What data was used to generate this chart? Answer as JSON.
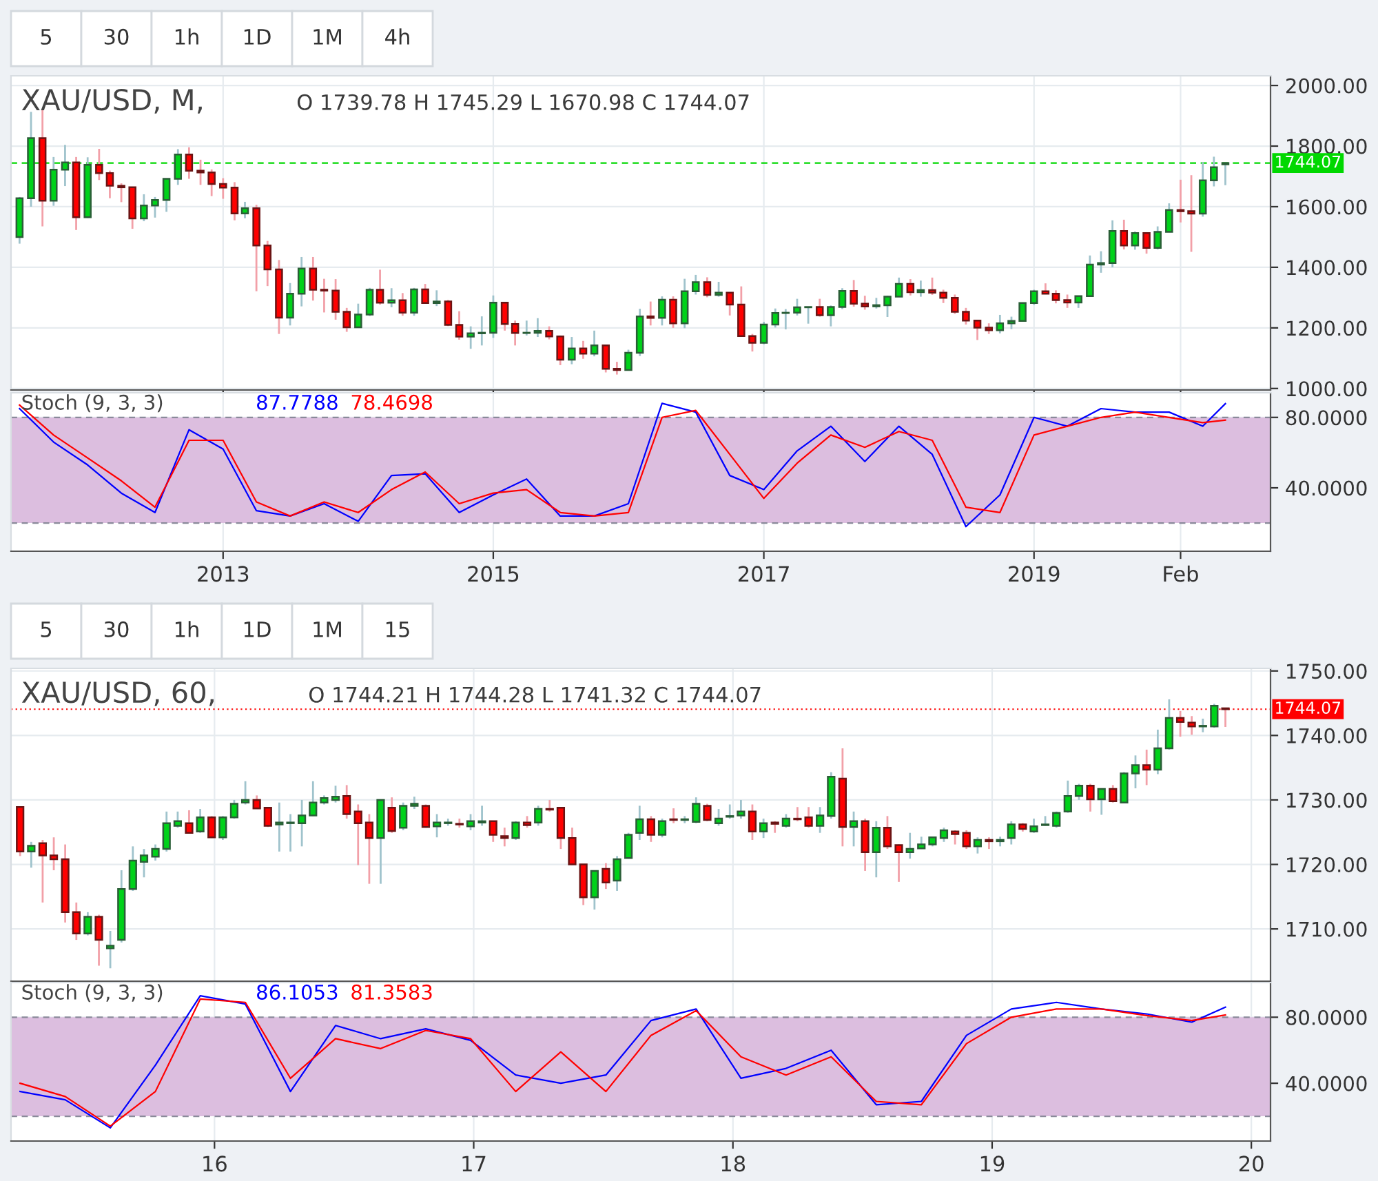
{
  "chart_data": [
    {
      "type": "candlestick",
      "title": "XAU/USD, M,",
      "subtitle": "O 1739.78 H 1745.29 L 1670.98 C 1744.07",
      "annotations": [
        "5",
        "30",
        "1h",
        "1D",
        "1M",
        "4h"
      ],
      "x": [
        "2011-07",
        "2011-08",
        "2011-09",
        "2011-10",
        "2011-11",
        "2011-12",
        "2012-01",
        "2012-02",
        "2012-03",
        "2012-04",
        "2012-05",
        "2012-06",
        "2012-07",
        "2012-08",
        "2012-09",
        "2012-10",
        "2012-11",
        "2012-12",
        "2013-01",
        "2013-02",
        "2013-03",
        "2013-04",
        "2013-05",
        "2013-06",
        "2013-07",
        "2013-08",
        "2013-09",
        "2013-10",
        "2013-11",
        "2013-12",
        "2014-01",
        "2014-02",
        "2014-03",
        "2014-04",
        "2014-05",
        "2014-06",
        "2014-07",
        "2014-08",
        "2014-09",
        "2014-10",
        "2014-11",
        "2014-12",
        "2015-01",
        "2015-02",
        "2015-03",
        "2015-04",
        "2015-05",
        "2015-06",
        "2015-07",
        "2015-08",
        "2015-09",
        "2015-10",
        "2015-11",
        "2015-12",
        "2016-01",
        "2016-02",
        "2016-03",
        "2016-04",
        "2016-05",
        "2016-06",
        "2016-07",
        "2016-08",
        "2016-09",
        "2016-10",
        "2016-11",
        "2016-12",
        "2017-01",
        "2017-02",
        "2017-03",
        "2017-04",
        "2017-05",
        "2017-06",
        "2017-07",
        "2017-08",
        "2017-09",
        "2017-10",
        "2017-11",
        "2017-12",
        "2018-01",
        "2018-02",
        "2018-03",
        "2018-04",
        "2018-05",
        "2018-06",
        "2018-07",
        "2018-08",
        "2018-09",
        "2018-10",
        "2018-11",
        "2018-12",
        "2019-01",
        "2019-02",
        "2019-03",
        "2019-04",
        "2019-05",
        "2019-06",
        "2019-07",
        "2019-08",
        "2019-09",
        "2019-10",
        "2019-11",
        "2019-12",
        "2020-01",
        "2020-02",
        "2020-03",
        "2020-04",
        "2020-05",
        "2020-06"
      ],
      "ohlc": [
        [
          1500,
          1632,
          1478,
          1628
        ],
        [
          1628,
          1913,
          1600,
          1826
        ],
        [
          1826,
          1921,
          1535,
          1620
        ],
        [
          1620,
          1764,
          1603,
          1722
        ],
        [
          1722,
          1804,
          1668,
          1746
        ],
        [
          1746,
          1764,
          1523,
          1565
        ],
        [
          1565,
          1763,
          1563,
          1738
        ],
        [
          1738,
          1791,
          1688,
          1711
        ],
        [
          1711,
          1719,
          1628,
          1669
        ],
        [
          1669,
          1677,
          1615,
          1664
        ],
        [
          1664,
          1666,
          1527,
          1561
        ],
        [
          1561,
          1641,
          1552,
          1604
        ],
        [
          1604,
          1632,
          1564,
          1622
        ],
        [
          1622,
          1693,
          1583,
          1692
        ],
        [
          1692,
          1790,
          1672,
          1772
        ],
        [
          1772,
          1796,
          1692,
          1719
        ],
        [
          1719,
          1755,
          1672,
          1713
        ],
        [
          1713,
          1723,
          1635,
          1675
        ],
        [
          1675,
          1694,
          1626,
          1663
        ],
        [
          1663,
          1681,
          1555,
          1578
        ],
        [
          1578,
          1616,
          1562,
          1595
        ],
        [
          1595,
          1606,
          1321,
          1472
        ],
        [
          1472,
          1487,
          1338,
          1393
        ],
        [
          1393,
          1424,
          1180,
          1234
        ],
        [
          1234,
          1348,
          1208,
          1313
        ],
        [
          1313,
          1434,
          1271,
          1396
        ],
        [
          1396,
          1434,
          1290,
          1326
        ],
        [
          1326,
          1362,
          1251,
          1323
        ],
        [
          1323,
          1361,
          1227,
          1253
        ],
        [
          1253,
          1266,
          1187,
          1202
        ],
        [
          1202,
          1280,
          1200,
          1244
        ],
        [
          1244,
          1332,
          1239,
          1326
        ],
        [
          1326,
          1392,
          1277,
          1283
        ],
        [
          1283,
          1331,
          1268,
          1291
        ],
        [
          1291,
          1315,
          1240,
          1250
        ],
        [
          1250,
          1332,
          1240,
          1327
        ],
        [
          1327,
          1345,
          1281,
          1282
        ],
        [
          1282,
          1324,
          1272,
          1287
        ],
        [
          1287,
          1292,
          1206,
          1210
        ],
        [
          1210,
          1255,
          1161,
          1171
        ],
        [
          1171,
          1205,
          1131,
          1182
        ],
        [
          1182,
          1238,
          1142,
          1184
        ],
        [
          1184,
          1307,
          1167,
          1283
        ],
        [
          1283,
          1284,
          1191,
          1213
        ],
        [
          1213,
          1224,
          1142,
          1183
        ],
        [
          1183,
          1224,
          1175,
          1184
        ],
        [
          1184,
          1232,
          1170,
          1190
        ],
        [
          1190,
          1205,
          1162,
          1172
        ],
        [
          1172,
          1175,
          1077,
          1095
        ],
        [
          1095,
          1170,
          1080,
          1132
        ],
        [
          1132,
          1157,
          1098,
          1115
        ],
        [
          1115,
          1191,
          1106,
          1142
        ],
        [
          1142,
          1143,
          1053,
          1065
        ],
        [
          1065,
          1088,
          1046,
          1061
        ],
        [
          1061,
          1128,
          1061,
          1118
        ],
        [
          1118,
          1263,
          1107,
          1238
        ],
        [
          1238,
          1287,
          1208,
          1233
        ],
        [
          1233,
          1304,
          1208,
          1293
        ],
        [
          1293,
          1304,
          1200,
          1215
        ],
        [
          1215,
          1362,
          1199,
          1321
        ],
        [
          1321,
          1375,
          1310,
          1351
        ],
        [
          1351,
          1367,
          1301,
          1309
        ],
        [
          1309,
          1352,
          1303,
          1316
        ],
        [
          1316,
          1318,
          1241,
          1277
        ],
        [
          1277,
          1337,
          1171,
          1173
        ],
        [
          1173,
          1180,
          1122,
          1151
        ],
        [
          1151,
          1220,
          1146,
          1211
        ],
        [
          1211,
          1264,
          1201,
          1249
        ],
        [
          1249,
          1262,
          1195,
          1250
        ],
        [
          1250,
          1296,
          1241,
          1268
        ],
        [
          1268,
          1270,
          1214,
          1269
        ],
        [
          1269,
          1296,
          1237,
          1242
        ],
        [
          1242,
          1274,
          1205,
          1269
        ],
        [
          1269,
          1331,
          1262,
          1322
        ],
        [
          1322,
          1358,
          1270,
          1280
        ],
        [
          1280,
          1306,
          1260,
          1271
        ],
        [
          1271,
          1299,
          1264,
          1275
        ],
        [
          1275,
          1306,
          1236,
          1303
        ],
        [
          1303,
          1366,
          1302,
          1345
        ],
        [
          1345,
          1361,
          1307,
          1318
        ],
        [
          1318,
          1356,
          1303,
          1325
        ],
        [
          1325,
          1366,
          1309,
          1316
        ],
        [
          1316,
          1326,
          1282,
          1299
        ],
        [
          1299,
          1310,
          1246,
          1253
        ],
        [
          1253,
          1266,
          1211,
          1224
        ],
        [
          1224,
          1227,
          1160,
          1201
        ],
        [
          1201,
          1215,
          1180,
          1192
        ],
        [
          1192,
          1243,
          1182,
          1215
        ],
        [
          1215,
          1237,
          1196,
          1223
        ],
        [
          1223,
          1284,
          1221,
          1282
        ],
        [
          1282,
          1326,
          1276,
          1321
        ],
        [
          1321,
          1347,
          1311,
          1313
        ],
        [
          1313,
          1324,
          1281,
          1292
        ],
        [
          1292,
          1310,
          1266,
          1284
        ],
        [
          1284,
          1306,
          1266,
          1305
        ],
        [
          1305,
          1439,
          1303,
          1409
        ],
        [
          1409,
          1453,
          1382,
          1414
        ],
        [
          1414,
          1555,
          1400,
          1520
        ],
        [
          1520,
          1557,
          1459,
          1472
        ],
        [
          1472,
          1518,
          1458,
          1513
        ],
        [
          1513,
          1516,
          1445,
          1464
        ],
        [
          1464,
          1535,
          1459,
          1517
        ],
        [
          1517,
          1611,
          1517,
          1589
        ],
        [
          1589,
          1689,
          1548,
          1585
        ],
        [
          1585,
          1704,
          1451,
          1577
        ],
        [
          1577,
          1747,
          1567,
          1687
        ],
        [
          1687,
          1765,
          1667,
          1730
        ],
        [
          1739.78,
          1745.29,
          1670.98,
          1744.07
        ]
      ],
      "xlim": [
        "2011-06-08",
        "2020-10-01"
      ],
      "xticks": [
        {
          "value": "2013-01",
          "label": null
        },
        {
          "value": "2015-01",
          "label": null
        },
        {
          "value": "2017-01",
          "label": null
        },
        {
          "value": "2019-01",
          "label": null
        },
        {
          "value": "2020-02",
          "label": null
        }
      ],
      "ylim": [
        995,
        2032
      ],
      "yticks": [
        {
          "value": 1000,
          "label": "1000.00"
        },
        {
          "value": 1200,
          "label": "1200.00"
        },
        {
          "value": 1400,
          "label": "1400.00"
        },
        {
          "value": 1600,
          "label": "1600.00"
        },
        {
          "value": 1800,
          "label": "1800.00"
        },
        {
          "value": 2000,
          "label": "2000.00"
        }
      ],
      "tick_labels": "y",
      "grid": true,
      "ref_lines": [
        {
          "axis": "y",
          "value": 1744.07,
          "label": "1744.07",
          "color": "#00d800",
          "line_style": "dashed"
        }
      ]
    },
    {
      "type": "line",
      "title": "Stoch (9, 3, 3)",
      "legend": "top left",
      "grid": true,
      "series": [
        {
          "name": "87.7788",
          "color": "#0000ff",
          "x": [
            "2011-07",
            "2011-10",
            "2012-01",
            "2012-04",
            "2012-07",
            "2012-10",
            "2013-01",
            "2013-04",
            "2013-07",
            "2013-10",
            "2014-01",
            "2014-04",
            "2014-07",
            "2014-10",
            "2015-01",
            "2015-04",
            "2015-07",
            "2015-10",
            "2016-01",
            "2016-04",
            "2016-07",
            "2016-10",
            "2017-01",
            "2017-04",
            "2017-07",
            "2017-10",
            "2018-01",
            "2018-04",
            "2018-07",
            "2018-10",
            "2019-01",
            "2019-04",
            "2019-07",
            "2019-10",
            "2020-01",
            "2020-04",
            "2020-06"
          ],
          "values": [
            85,
            66,
            53,
            37,
            26,
            73,
            62,
            27,
            24,
            31,
            21,
            47,
            48,
            26,
            36,
            45,
            24,
            24,
            31,
            88,
            83,
            47,
            39,
            61,
            75,
            55,
            75,
            59,
            18,
            36,
            80,
            75,
            85,
            83,
            83,
            75,
            87.7788
          ]
        },
        {
          "name": "78.4698",
          "color": "#ff0000",
          "x": [
            "2011-07",
            "2011-10",
            "2012-01",
            "2012-04",
            "2012-07",
            "2012-10",
            "2013-01",
            "2013-04",
            "2013-07",
            "2013-10",
            "2014-01",
            "2014-04",
            "2014-07",
            "2014-10",
            "2015-01",
            "2015-04",
            "2015-07",
            "2015-10",
            "2016-01",
            "2016-04",
            "2016-07",
            "2016-10",
            "2017-01",
            "2017-04",
            "2017-07",
            "2017-10",
            "2018-01",
            "2018-04",
            "2018-07",
            "2018-10",
            "2019-01",
            "2019-04",
            "2019-07",
            "2019-10",
            "2020-01",
            "2020-04",
            "2020-06"
          ],
          "values": [
            87,
            70,
            57,
            44,
            29,
            67,
            67,
            32,
            24,
            32,
            26,
            39,
            49,
            31,
            37,
            39,
            26,
            24,
            26,
            80,
            84,
            59,
            34,
            54,
            70,
            63,
            72,
            67,
            29,
            26,
            70,
            75,
            80,
            83,
            80,
            77,
            78.4698
          ]
        }
      ],
      "xlim": [
        "2011-06-08",
        "2020-10-01"
      ],
      "xticks": [
        {
          "value": "2013-01",
          "label": "2013"
        },
        {
          "value": "2015-01",
          "label": "2015"
        },
        {
          "value": "2017-01",
          "label": "2017"
        },
        {
          "value": "2019-01",
          "label": "2019"
        },
        {
          "value": "2020-02",
          "label": "Feb"
        }
      ],
      "ylim": [
        4,
        94
      ],
      "yticks": [
        {
          "value": 40,
          "label": "40.0000"
        },
        {
          "value": 80,
          "label": "80.0000"
        }
      ],
      "bands": [
        {
          "axis": "y",
          "from": 20,
          "to": 80,
          "color": "#dcbedf"
        }
      ],
      "ref_lines": [
        {
          "axis": "y",
          "value": 80,
          "color": "#8a8a9a",
          "line_style": "dashed"
        },
        {
          "axis": "y",
          "value": 20,
          "color": "#8a8a9a",
          "line_style": "dashed"
        }
      ]
    },
    {
      "type": "candlestick",
      "title": "XAU/USD, 60,",
      "subtitle": "O 1744.21 H 1744.28 L 1741.32 C 1744.07",
      "annotations": [
        "5",
        "30",
        "1h",
        "1D",
        "1M",
        "15"
      ],
      "x": [
        15.25,
        15.293,
        15.337,
        15.38,
        15.424,
        15.467,
        15.511,
        15.554,
        15.598,
        15.641,
        15.685,
        15.728,
        15.772,
        15.815,
        15.858,
        15.902,
        15.945,
        15.989,
        16.032,
        16.076,
        16.119,
        16.163,
        16.206,
        16.25,
        16.293,
        16.337,
        16.38,
        16.423,
        16.467,
        16.51,
        16.554,
        16.597,
        16.641,
        16.684,
        16.728,
        16.771,
        16.815,
        16.858,
        16.901,
        16.945,
        16.988,
        17.032,
        17.075,
        17.119,
        17.162,
        17.206,
        17.249,
        17.293,
        17.336,
        17.38,
        17.423,
        17.466,
        17.51,
        17.553,
        17.597,
        17.64,
        17.684,
        17.727,
        17.771,
        17.814,
        17.858,
        17.901,
        17.945,
        17.988,
        18.031,
        18.075,
        18.118,
        18.162,
        18.205,
        18.249,
        18.292,
        18.336,
        18.379,
        18.423,
        18.466,
        18.51,
        18.553,
        18.596,
        18.64,
        18.683,
        18.727,
        18.77,
        18.814,
        18.857,
        18.901,
        18.944,
        18.988,
        19.031,
        19.074,
        19.118,
        19.161,
        19.205,
        19.248,
        19.292,
        19.335,
        19.379,
        19.422,
        19.466,
        19.509,
        19.553,
        19.596,
        19.639,
        19.683,
        19.726,
        19.77,
        19.813,
        19.857,
        19.9
      ],
      "ohlc": [
        [
          1728.9,
          1728.9,
          1721.3,
          1722.0
        ],
        [
          1722.0,
          1723.5,
          1719.5,
          1722.9
        ],
        [
          1723.3,
          1723.8,
          1714.1,
          1721.4
        ],
        [
          1721.4,
          1724.2,
          1719.1,
          1720.8
        ],
        [
          1720.8,
          1723.1,
          1711.0,
          1712.6
        ],
        [
          1712.6,
          1714.1,
          1708.3,
          1709.3
        ],
        [
          1709.3,
          1712.6,
          1709.0,
          1711.9
        ],
        [
          1711.9,
          1712.2,
          1704.3,
          1708.3
        ],
        [
          1707.0,
          1709.7,
          1703.9,
          1707.4
        ],
        [
          1708.3,
          1719.1,
          1707.9,
          1716.2
        ],
        [
          1716.2,
          1722.8,
          1715.9,
          1720.6
        ],
        [
          1720.4,
          1722.4,
          1718.0,
          1721.4
        ],
        [
          1721.2,
          1723.1,
          1720.6,
          1722.4
        ],
        [
          1722.4,
          1728.2,
          1722.0,
          1726.4
        ],
        [
          1726.0,
          1728.2,
          1725.7,
          1726.7
        ],
        [
          1726.4,
          1728.4,
          1724.8,
          1724.9
        ],
        [
          1725.1,
          1728.6,
          1724.9,
          1727.3
        ],
        [
          1727.3,
          1727.5,
          1724.1,
          1724.2
        ],
        [
          1724.2,
          1727.5,
          1723.8,
          1727.3
        ],
        [
          1727.3,
          1730.0,
          1727.1,
          1729.4
        ],
        [
          1729.6,
          1732.9,
          1729.3,
          1730.0
        ],
        [
          1730.0,
          1730.7,
          1728.6,
          1728.7
        ],
        [
          1728.8,
          1728.8,
          1725.8,
          1726.0
        ],
        [
          1726.2,
          1729.6,
          1722.0,
          1726.5
        ],
        [
          1726.4,
          1727.8,
          1722.0,
          1726.5
        ],
        [
          1726.4,
          1730.0,
          1722.8,
          1727.6
        ],
        [
          1727.6,
          1732.9,
          1727.5,
          1729.6
        ],
        [
          1729.6,
          1730.7,
          1729.3,
          1730.3
        ],
        [
          1730.0,
          1732.2,
          1729.6,
          1730.5
        ],
        [
          1730.6,
          1732.3,
          1727.1,
          1727.8
        ],
        [
          1728.2,
          1729.3,
          1719.9,
          1726.4
        ],
        [
          1726.5,
          1727.8,
          1717.0,
          1724.1
        ],
        [
          1724.1,
          1730.0,
          1717.0,
          1730.0
        ],
        [
          1728.8,
          1730.4,
          1724.9,
          1725.2
        ],
        [
          1725.7,
          1729.6,
          1725.3,
          1729.1
        ],
        [
          1729.1,
          1730.5,
          1728.6,
          1729.4
        ],
        [
          1729.1,
          1729.3,
          1725.7,
          1725.8
        ],
        [
          1725.9,
          1727.8,
          1724.2,
          1726.5
        ],
        [
          1726.4,
          1727.1,
          1726.0,
          1726.5
        ],
        [
          1726.3,
          1727.1,
          1725.7,
          1726.2
        ],
        [
          1725.9,
          1727.8,
          1725.3,
          1726.7
        ],
        [
          1726.5,
          1729.1,
          1726.0,
          1726.7
        ],
        [
          1726.7,
          1726.7,
          1723.5,
          1724.6
        ],
        [
          1724.4,
          1725.7,
          1722.8,
          1724.1
        ],
        [
          1724.1,
          1726.7,
          1723.8,
          1726.5
        ],
        [
          1726.5,
          1727.5,
          1725.7,
          1726.1
        ],
        [
          1726.5,
          1729.1,
          1726.0,
          1728.6
        ],
        [
          1728.6,
          1730.0,
          1728.2,
          1728.5
        ],
        [
          1728.8,
          1728.8,
          1722.4,
          1724.1
        ],
        [
          1724.1,
          1725.7,
          1719.9,
          1720.0
        ],
        [
          1720.0,
          1720.0,
          1713.7,
          1714.9
        ],
        [
          1714.9,
          1719.1,
          1713.0,
          1719.0
        ],
        [
          1719.3,
          1720.2,
          1716.2,
          1717.2
        ],
        [
          1717.5,
          1721.3,
          1715.9,
          1720.8
        ],
        [
          1721.0,
          1724.9,
          1720.9,
          1724.6
        ],
        [
          1724.9,
          1729.1,
          1723.8,
          1727.0
        ],
        [
          1727.0,
          1727.5,
          1723.5,
          1724.6
        ],
        [
          1724.6,
          1727.1,
          1724.2,
          1726.7
        ],
        [
          1727.0,
          1728.7,
          1726.4,
          1726.9
        ],
        [
          1726.9,
          1727.5,
          1726.4,
          1727.0
        ],
        [
          1726.6,
          1730.4,
          1726.4,
          1729.4
        ],
        [
          1729.1,
          1729.4,
          1726.7,
          1726.9
        ],
        [
          1726.4,
          1728.6,
          1726.0,
          1727.1
        ],
        [
          1727.4,
          1729.3,
          1727.1,
          1727.5
        ],
        [
          1727.6,
          1730.0,
          1727.1,
          1728.2
        ],
        [
          1728.2,
          1729.3,
          1723.8,
          1725.1
        ],
        [
          1725.1,
          1727.1,
          1724.1,
          1726.4
        ],
        [
          1726.5,
          1726.7,
          1724.9,
          1726.3
        ],
        [
          1726.0,
          1727.8,
          1725.7,
          1727.1
        ],
        [
          1727.1,
          1728.9,
          1726.7,
          1727.0
        ],
        [
          1727.3,
          1728.9,
          1725.7,
          1726.0
        ],
        [
          1726.0,
          1728.9,
          1724.9,
          1727.6
        ],
        [
          1727.5,
          1734.3,
          1727.1,
          1733.6
        ],
        [
          1733.3,
          1738.0,
          1722.8,
          1725.8
        ],
        [
          1725.8,
          1728.2,
          1722.8,
          1726.7
        ],
        [
          1726.7,
          1727.1,
          1719.0,
          1721.9
        ],
        [
          1721.9,
          1726.7,
          1718.0,
          1725.7
        ],
        [
          1725.7,
          1727.5,
          1722.4,
          1722.8
        ],
        [
          1723.0,
          1723.1,
          1717.3,
          1721.9
        ],
        [
          1721.9,
          1724.9,
          1720.9,
          1722.4
        ],
        [
          1722.5,
          1724.3,
          1722.4,
          1723.1
        ],
        [
          1723.1,
          1724.3,
          1722.8,
          1724.2
        ],
        [
          1724.1,
          1725.7,
          1723.5,
          1725.3
        ],
        [
          1725.1,
          1725.3,
          1723.1,
          1724.7
        ],
        [
          1724.9,
          1725.3,
          1722.4,
          1722.8
        ],
        [
          1722.8,
          1724.2,
          1721.7,
          1723.8
        ],
        [
          1723.8,
          1724.2,
          1722.4,
          1723.6
        ],
        [
          1723.6,
          1724.3,
          1722.8,
          1723.8
        ],
        [
          1724.1,
          1726.7,
          1723.1,
          1726.2
        ],
        [
          1726.2,
          1726.4,
          1725.1,
          1725.5
        ],
        [
          1725.1,
          1727.1,
          1724.9,
          1725.9
        ],
        [
          1726.1,
          1727.5,
          1726.0,
          1726.2
        ],
        [
          1726.0,
          1728.2,
          1725.7,
          1728.0
        ],
        [
          1728.2,
          1733.0,
          1728.0,
          1730.6
        ],
        [
          1730.6,
          1732.5,
          1730.0,
          1732.2
        ],
        [
          1732.2,
          1732.5,
          1728.2,
          1730.1
        ],
        [
          1730.1,
          1731.8,
          1727.7,
          1731.7
        ],
        [
          1731.7,
          1732.3,
          1729.6,
          1729.8
        ],
        [
          1729.6,
          1734.3,
          1729.6,
          1734.1
        ],
        [
          1734.1,
          1736.9,
          1731.8,
          1735.4
        ],
        [
          1735.4,
          1737.8,
          1732.3,
          1734.7
        ],
        [
          1734.7,
          1740.9,
          1734.0,
          1738.0
        ],
        [
          1738.0,
          1745.6,
          1737.8,
          1742.7
        ],
        [
          1742.7,
          1743.8,
          1739.8,
          1742.1
        ],
        [
          1742.0,
          1743.0,
          1740.1,
          1741.4
        ],
        [
          1741.4,
          1742.6,
          1740.5,
          1741.5
        ],
        [
          1741.4,
          1744.9,
          1741.2,
          1744.6
        ],
        [
          1744.21,
          1744.28,
          1741.32,
          1744.07
        ]
      ],
      "xlim": [
        15.215,
        20.074
      ],
      "xticks": [
        {
          "value": 16,
          "label": null
        },
        {
          "value": 17,
          "label": null
        },
        {
          "value": 18,
          "label": null
        },
        {
          "value": 19,
          "label": null
        },
        {
          "value": 20,
          "label": null
        }
      ],
      "ylim": [
        1701.9,
        1750.4
      ],
      "yticks": [
        {
          "value": 1710,
          "label": "1710.00"
        },
        {
          "value": 1720,
          "label": "1720.00"
        },
        {
          "value": 1730,
          "label": "1730.00"
        },
        {
          "value": 1740,
          "label": "1740.00"
        },
        {
          "value": 1750,
          "label": "1750.00"
        }
      ],
      "tick_labels": "y",
      "grid": true,
      "ref_lines": [
        {
          "axis": "y",
          "value": 1744.07,
          "label": "1744.07",
          "color": "#ff0000",
          "line_style": "dotted"
        }
      ]
    },
    {
      "type": "line",
      "title": "Stoch (9, 3, 3)",
      "legend": "top left",
      "grid": true,
      "series": [
        {
          "name": "86.1053",
          "color": "#0000ff",
          "x": [
            15.25,
            15.424,
            15.598,
            15.772,
            15.945,
            16.119,
            16.293,
            16.467,
            16.641,
            16.815,
            16.988,
            17.162,
            17.336,
            17.51,
            17.684,
            17.858,
            18.031,
            18.205,
            18.379,
            18.553,
            18.727,
            18.901,
            19.074,
            19.248,
            19.422,
            19.596,
            19.77,
            19.9
          ],
          "values": [
            35,
            30,
            13,
            51,
            93,
            88,
            35,
            75,
            67,
            73,
            66,
            45,
            40,
            45,
            78,
            85,
            43,
            49,
            60,
            27,
            29,
            69,
            85,
            89,
            85,
            82,
            77,
            86.1053
          ]
        },
        {
          "name": "81.3583",
          "color": "#ff0000",
          "x": [
            15.25,
            15.424,
            15.598,
            15.772,
            15.945,
            16.119,
            16.293,
            16.467,
            16.641,
            16.815,
            16.988,
            17.162,
            17.336,
            17.51,
            17.684,
            17.858,
            18.031,
            18.205,
            18.379,
            18.553,
            18.727,
            18.901,
            19.074,
            19.248,
            19.422,
            19.596,
            19.77,
            19.9
          ],
          "values": [
            40,
            32,
            14,
            35,
            91,
            89,
            43,
            67,
            61,
            72,
            67,
            35,
            59,
            35,
            69,
            84,
            56,
            45,
            56,
            29,
            27,
            64,
            80,
            85,
            85,
            81,
            78,
            81.3583
          ]
        }
      ],
      "xlim": [
        15.215,
        20.074
      ],
      "xticks": [
        16,
        17,
        18,
        19,
        20
      ],
      "ylim": [
        5,
        101
      ],
      "yticks": [
        {
          "value": 40,
          "label": "40.0000"
        },
        {
          "value": 80,
          "label": "80.0000"
        }
      ],
      "bands": [
        {
          "axis": "y",
          "from": 20,
          "to": 80,
          "color": "#dcbedf"
        }
      ],
      "ref_lines": [
        {
          "axis": "y",
          "value": 80,
          "color": "#8a8a9a",
          "line_style": "dashed"
        },
        {
          "axis": "y",
          "value": 20,
          "color": "#8a8a9a",
          "line_style": "dashed"
        }
      ]
    }
  ]
}
